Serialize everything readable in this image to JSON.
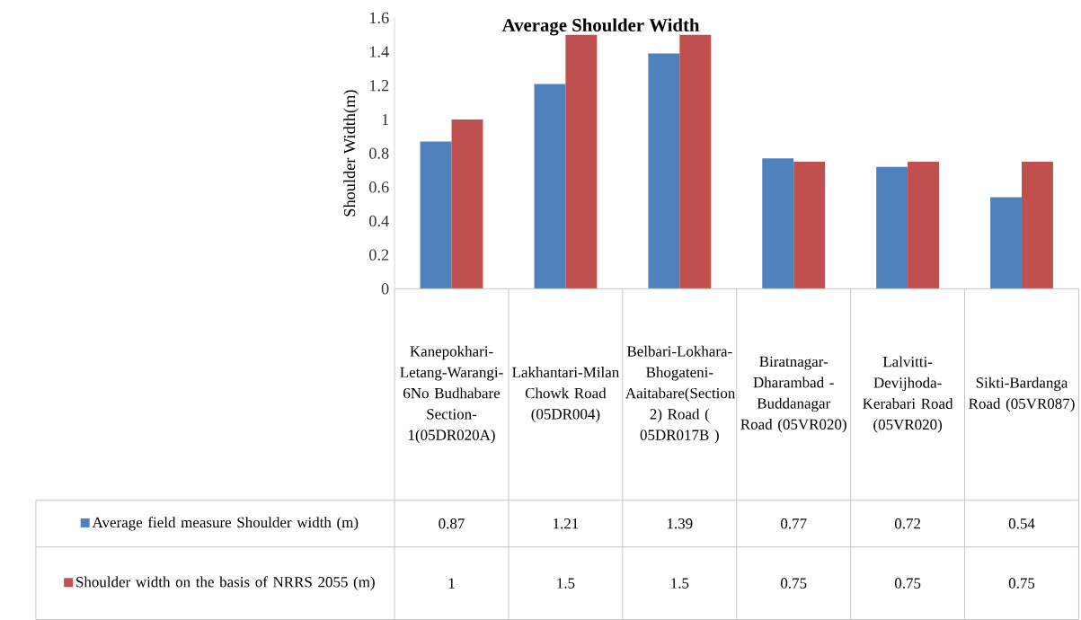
{
  "chart_data": {
    "type": "bar",
    "title": "Average Shoulder Width",
    "ylabel": "Shoulder Width(m)",
    "categories": [
      "Kanepokhari-Letang-Warangi-6No Budhabare Section-1(05DR020A)",
      "Lakhantari-Milan Chowk Road (05DR004)",
      "Belbari-Lokhara-Bhogateni-Aaitabare(Section 2) Road ( 05DR017B )",
      "Biratnagar-Dharambad - Buddanagar Road (05VR020)",
      "Lalvitti-Devijhoda-Kerabari Road (05VR020)",
      "Sikti-Bardanga Road (05VR087)"
    ],
    "series": [
      {
        "name": "Average field measure Shoulder width (m)",
        "color": "#4f81bd",
        "values": [
          0.87,
          1.21,
          1.39,
          0.77,
          0.72,
          0.54
        ]
      },
      {
        "name": "Shoulder width on the basis of NRRS 2055 (m)",
        "color": "#c0504d",
        "values": [
          1,
          1.5,
          1.5,
          0.75,
          0.75,
          0.75
        ]
      }
    ],
    "ylim": [
      0,
      1.6
    ],
    "yticks": [
      0,
      0.2,
      0.4,
      0.6,
      0.8,
      1,
      1.2,
      1.4,
      1.6
    ],
    "data_labels": true,
    "legend": "bottom left"
  }
}
